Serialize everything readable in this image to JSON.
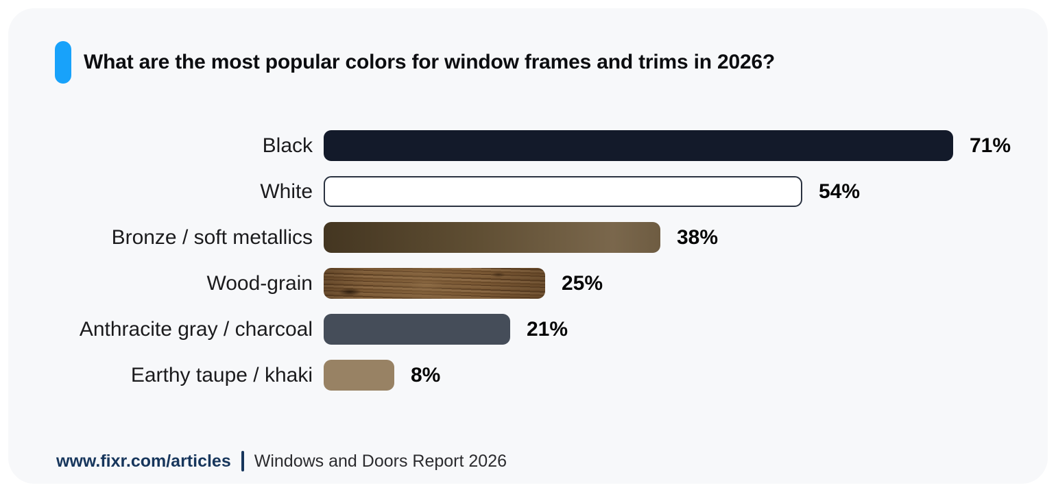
{
  "header": {
    "title": "What are the most popular colors for window frames and trims in 2026?",
    "accent_color": "#18a2fa"
  },
  "chart_data": {
    "type": "bar",
    "orientation": "horizontal",
    "title": "What are the most popular colors for window frames and trims in 2026?",
    "categories": [
      "Black",
      "White",
      "Bronze / soft metallics",
      "Wood-grain",
      "Anthracite gray / charcoal",
      "Earthy taupe / khaki"
    ],
    "values": [
      71,
      54,
      38,
      25,
      21,
      8
    ],
    "value_labels": [
      "71%",
      "54%",
      "38%",
      "25%",
      "21%",
      "8%"
    ],
    "unit": "%",
    "xlim": [
      0,
      71
    ],
    "grid": false,
    "legend": false,
    "value_label_position": "end-of-bar",
    "bar_styles": [
      {
        "category": "Black",
        "fill": "solid",
        "color": "#131a2a"
      },
      {
        "category": "White",
        "fill": "solid",
        "color": "#ffffff",
        "border_color": "#2a3240"
      },
      {
        "category": "Bronze / soft metallics",
        "fill": "gradient",
        "gradient_stops": [
          "#443621",
          "#5f4e33",
          "#7a674c",
          "#6e5c42"
        ]
      },
      {
        "category": "Wood-grain",
        "fill": "wood-texture",
        "color": "#71502f"
      },
      {
        "category": "Anthracite gray / charcoal",
        "fill": "solid",
        "color": "#454d59"
      },
      {
        "category": "Earthy taupe / khaki",
        "fill": "solid",
        "color": "#988264"
      }
    ]
  },
  "footer": {
    "site": "www.fixr.com/articles",
    "separator": "|",
    "report": "Windows and Doors Report 2026"
  }
}
